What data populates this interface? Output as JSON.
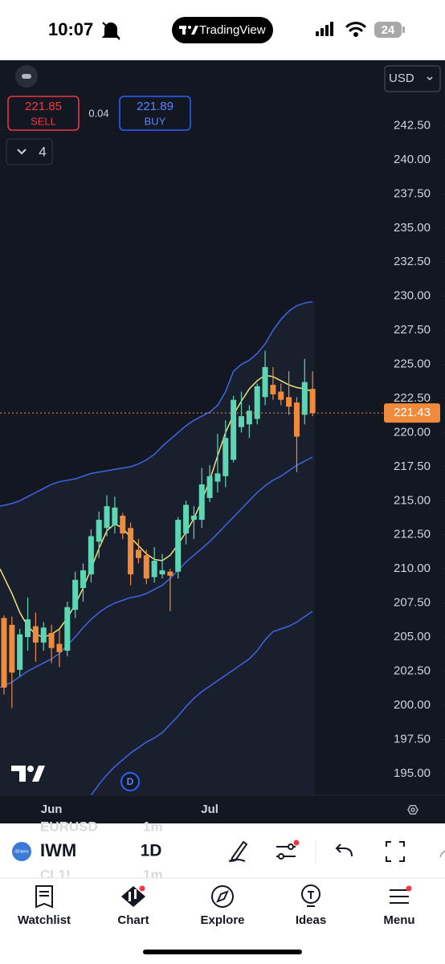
{
  "status_bar": {
    "time": "10:07",
    "app": "TradingView",
    "battery": "24"
  },
  "top_controls": {
    "currency": "USD",
    "sell_price": "221.85",
    "sell_label": "SELL",
    "spread": "0.04",
    "buy_price": "221.89",
    "buy_label": "BUY",
    "indicators_count": "4"
  },
  "chart_data": {
    "type": "candlestick",
    "badge": "D",
    "categories": [
      null,
      null,
      null,
      null,
      null,
      null,
      "Jun",
      null,
      null,
      null,
      null,
      null,
      null,
      null,
      null,
      null,
      null,
      null,
      null,
      null,
      null,
      null,
      null,
      null,
      null,
      null,
      "Jul",
      null,
      null,
      null,
      null,
      null,
      null,
      null,
      null,
      null,
      null,
      null,
      null,
      null
    ],
    "open": [
      206.4,
      205.9,
      202.6,
      205.0,
      205.8,
      204.6,
      205.3,
      204.5,
      204.0,
      207.0,
      208.6,
      209.6,
      212.0,
      213.0,
      213.2,
      213.9,
      213.0,
      211.4,
      211.0,
      209.4,
      209.6,
      209.8,
      209.8,
      212.6,
      213.6,
      213.6,
      215.2,
      216.4,
      216.8,
      218.0,
      220.4,
      220.6,
      221.0,
      222.6,
      223.5,
      223.0,
      222.6,
      222.2,
      221.3,
      223.2
    ],
    "high": [
      206.6,
      206.5,
      205.6,
      207.9,
      206.8,
      206.1,
      205.9,
      205.6,
      207.6,
      209.8,
      210.4,
      212.9,
      214.2,
      215.4,
      215.3,
      214.1,
      213.4,
      212.2,
      211.4,
      211.6,
      211.1,
      210.0,
      213.8,
      215.0,
      214.6,
      217.4,
      217.6,
      219.9,
      220.9,
      222.7,
      223.0,
      222.0,
      223.6,
      226.0,
      224.8,
      223.6,
      224.5,
      222.6,
      225.4,
      224.5
    ],
    "low": [
      200.8,
      199.8,
      202.1,
      204.0,
      203.2,
      204.0,
      203.1,
      202.8,
      203.6,
      206.4,
      207.6,
      209.0,
      210.8,
      212.4,
      212.6,
      212.2,
      208.8,
      210.4,
      208.9,
      209.0,
      209.3,
      206.9,
      209.3,
      211.8,
      212.2,
      213.0,
      214.9,
      215.6,
      216.0,
      217.8,
      220.0,
      219.6,
      220.6,
      222.0,
      222.4,
      222.0,
      221.3,
      217.1,
      220.6,
      221.2
    ],
    "close": [
      201.3,
      202.4,
      205.2,
      206.3,
      204.6,
      205.7,
      204.2,
      203.9,
      207.2,
      209.2,
      209.9,
      212.4,
      213.6,
      214.6,
      214.5,
      212.6,
      209.6,
      210.8,
      209.3,
      210.6,
      209.9,
      209.5,
      213.6,
      214.7,
      213.9,
      216.2,
      216.8,
      217.0,
      219.6,
      222.4,
      221.2,
      221.6,
      223.4,
      224.8,
      222.8,
      222.4,
      221.9,
      219.7,
      223.7,
      221.43
    ],
    "up_color": "#5dd6b3",
    "down_color": "#f08a3c",
    "last_price_color": "#f08a3c",
    "band_fill": "#1a1f2d",
    "background": "#131722",
    "lines": [
      {
        "color": "#3d66e6",
        "values": [
          214.6,
          214.8,
          215.0,
          215.3,
          215.6,
          215.9,
          216.2,
          216.4,
          216.5,
          216.6,
          216.8,
          217.0,
          217.1,
          217.2,
          217.3,
          217.4,
          217.5,
          217.7,
          218.0,
          218.4,
          219.0,
          219.5,
          220.0,
          220.5,
          220.9,
          221.2,
          221.5,
          222.0,
          223.0,
          224.5,
          225.0,
          225.3,
          225.8,
          226.5,
          227.5,
          228.3,
          228.9,
          229.3,
          229.5,
          229.6
        ]
      },
      {
        "color": "#3d66e6",
        "values": [
          201.3,
          201.7,
          202.1,
          202.5,
          202.8,
          203.1,
          203.4,
          203.8,
          204.4,
          205.0,
          205.7,
          206.3,
          206.8,
          207.2,
          207.5,
          207.7,
          207.9,
          208.0,
          208.2,
          208.5,
          208.8,
          209.3,
          209.9,
          210.5,
          211.0,
          211.5,
          212.0,
          212.6,
          213.2,
          213.8,
          214.4,
          215.0,
          215.6,
          216.1,
          216.5,
          216.8,
          217.2,
          217.6,
          217.9,
          218.2
        ]
      },
      {
        "color": "#3d66e6",
        "values": [
          null,
          null,
          null,
          null,
          null,
          null,
          null,
          null,
          null,
          null,
          null,
          193.4,
          194.2,
          194.9,
          195.5,
          196.0,
          196.5,
          196.9,
          197.3,
          197.6,
          198.0,
          198.6,
          199.2,
          199.9,
          200.5,
          201.0,
          201.4,
          201.8,
          202.2,
          202.6,
          203.0,
          203.4,
          204.0,
          204.8,
          205.4,
          205.6,
          205.8,
          206.1,
          206.5,
          206.9
        ]
      },
      {
        "color": "#f2e27a",
        "values": [
          210.0,
          208.2,
          206.8,
          205.8,
          205.2,
          205.0,
          205.2,
          205.6,
          206.4,
          207.4,
          208.6,
          210.0,
          211.5,
          212.8,
          213.3,
          213.0,
          212.3,
          211.7,
          211.1,
          210.7,
          210.6,
          211.0,
          211.8,
          212.7,
          213.7,
          215.0,
          216.5,
          218.3,
          220.0,
          221.3,
          222.3,
          223.2,
          223.8,
          224.2,
          224.1,
          223.8,
          223.5,
          223.3,
          223.2,
          223.0
        ]
      }
    ],
    "ylim": [
      193.4,
      247.3
    ],
    "yticks": [
      {
        "value": 242.5,
        "label": "242.50"
      },
      {
        "value": 240,
        "label": "240.00"
      },
      {
        "value": 237.5,
        "label": "237.50"
      },
      {
        "value": 235,
        "label": "235.00"
      },
      {
        "value": 232.5,
        "label": "232.50"
      },
      {
        "value": 230,
        "label": "230.00"
      },
      {
        "value": 227.5,
        "label": "227.50"
      },
      {
        "value": 225,
        "label": "225.00"
      },
      {
        "value": 222.5,
        "label": "222.50"
      },
      {
        "value": 220,
        "label": "220.00"
      },
      {
        "value": 217.5,
        "label": "217.50"
      },
      {
        "value": 215,
        "label": "215.00"
      },
      {
        "value": 212.5,
        "label": "212.50"
      },
      {
        "value": 210,
        "label": "210.00"
      },
      {
        "value": 207.5,
        "label": "207.50"
      },
      {
        "value": 205,
        "label": "205.00"
      },
      {
        "value": 202.5,
        "label": "202.50"
      },
      {
        "value": 200,
        "label": "200.00"
      },
      {
        "value": 197.5,
        "label": "197.50"
      },
      {
        "value": 195,
        "label": "195.00"
      }
    ],
    "grid": false
  },
  "symbol_bar": {
    "issuer": "iShares",
    "symbol": "IWM",
    "interval": "1D",
    "behind": [
      {
        "symbol": "EURUSD",
        "interval": "1m"
      },
      {
        "symbol": "CL1!",
        "interval": "1m"
      }
    ]
  },
  "tabs": [
    "Watchlist",
    "Chart",
    "Explore",
    "Ideas",
    "Menu"
  ]
}
